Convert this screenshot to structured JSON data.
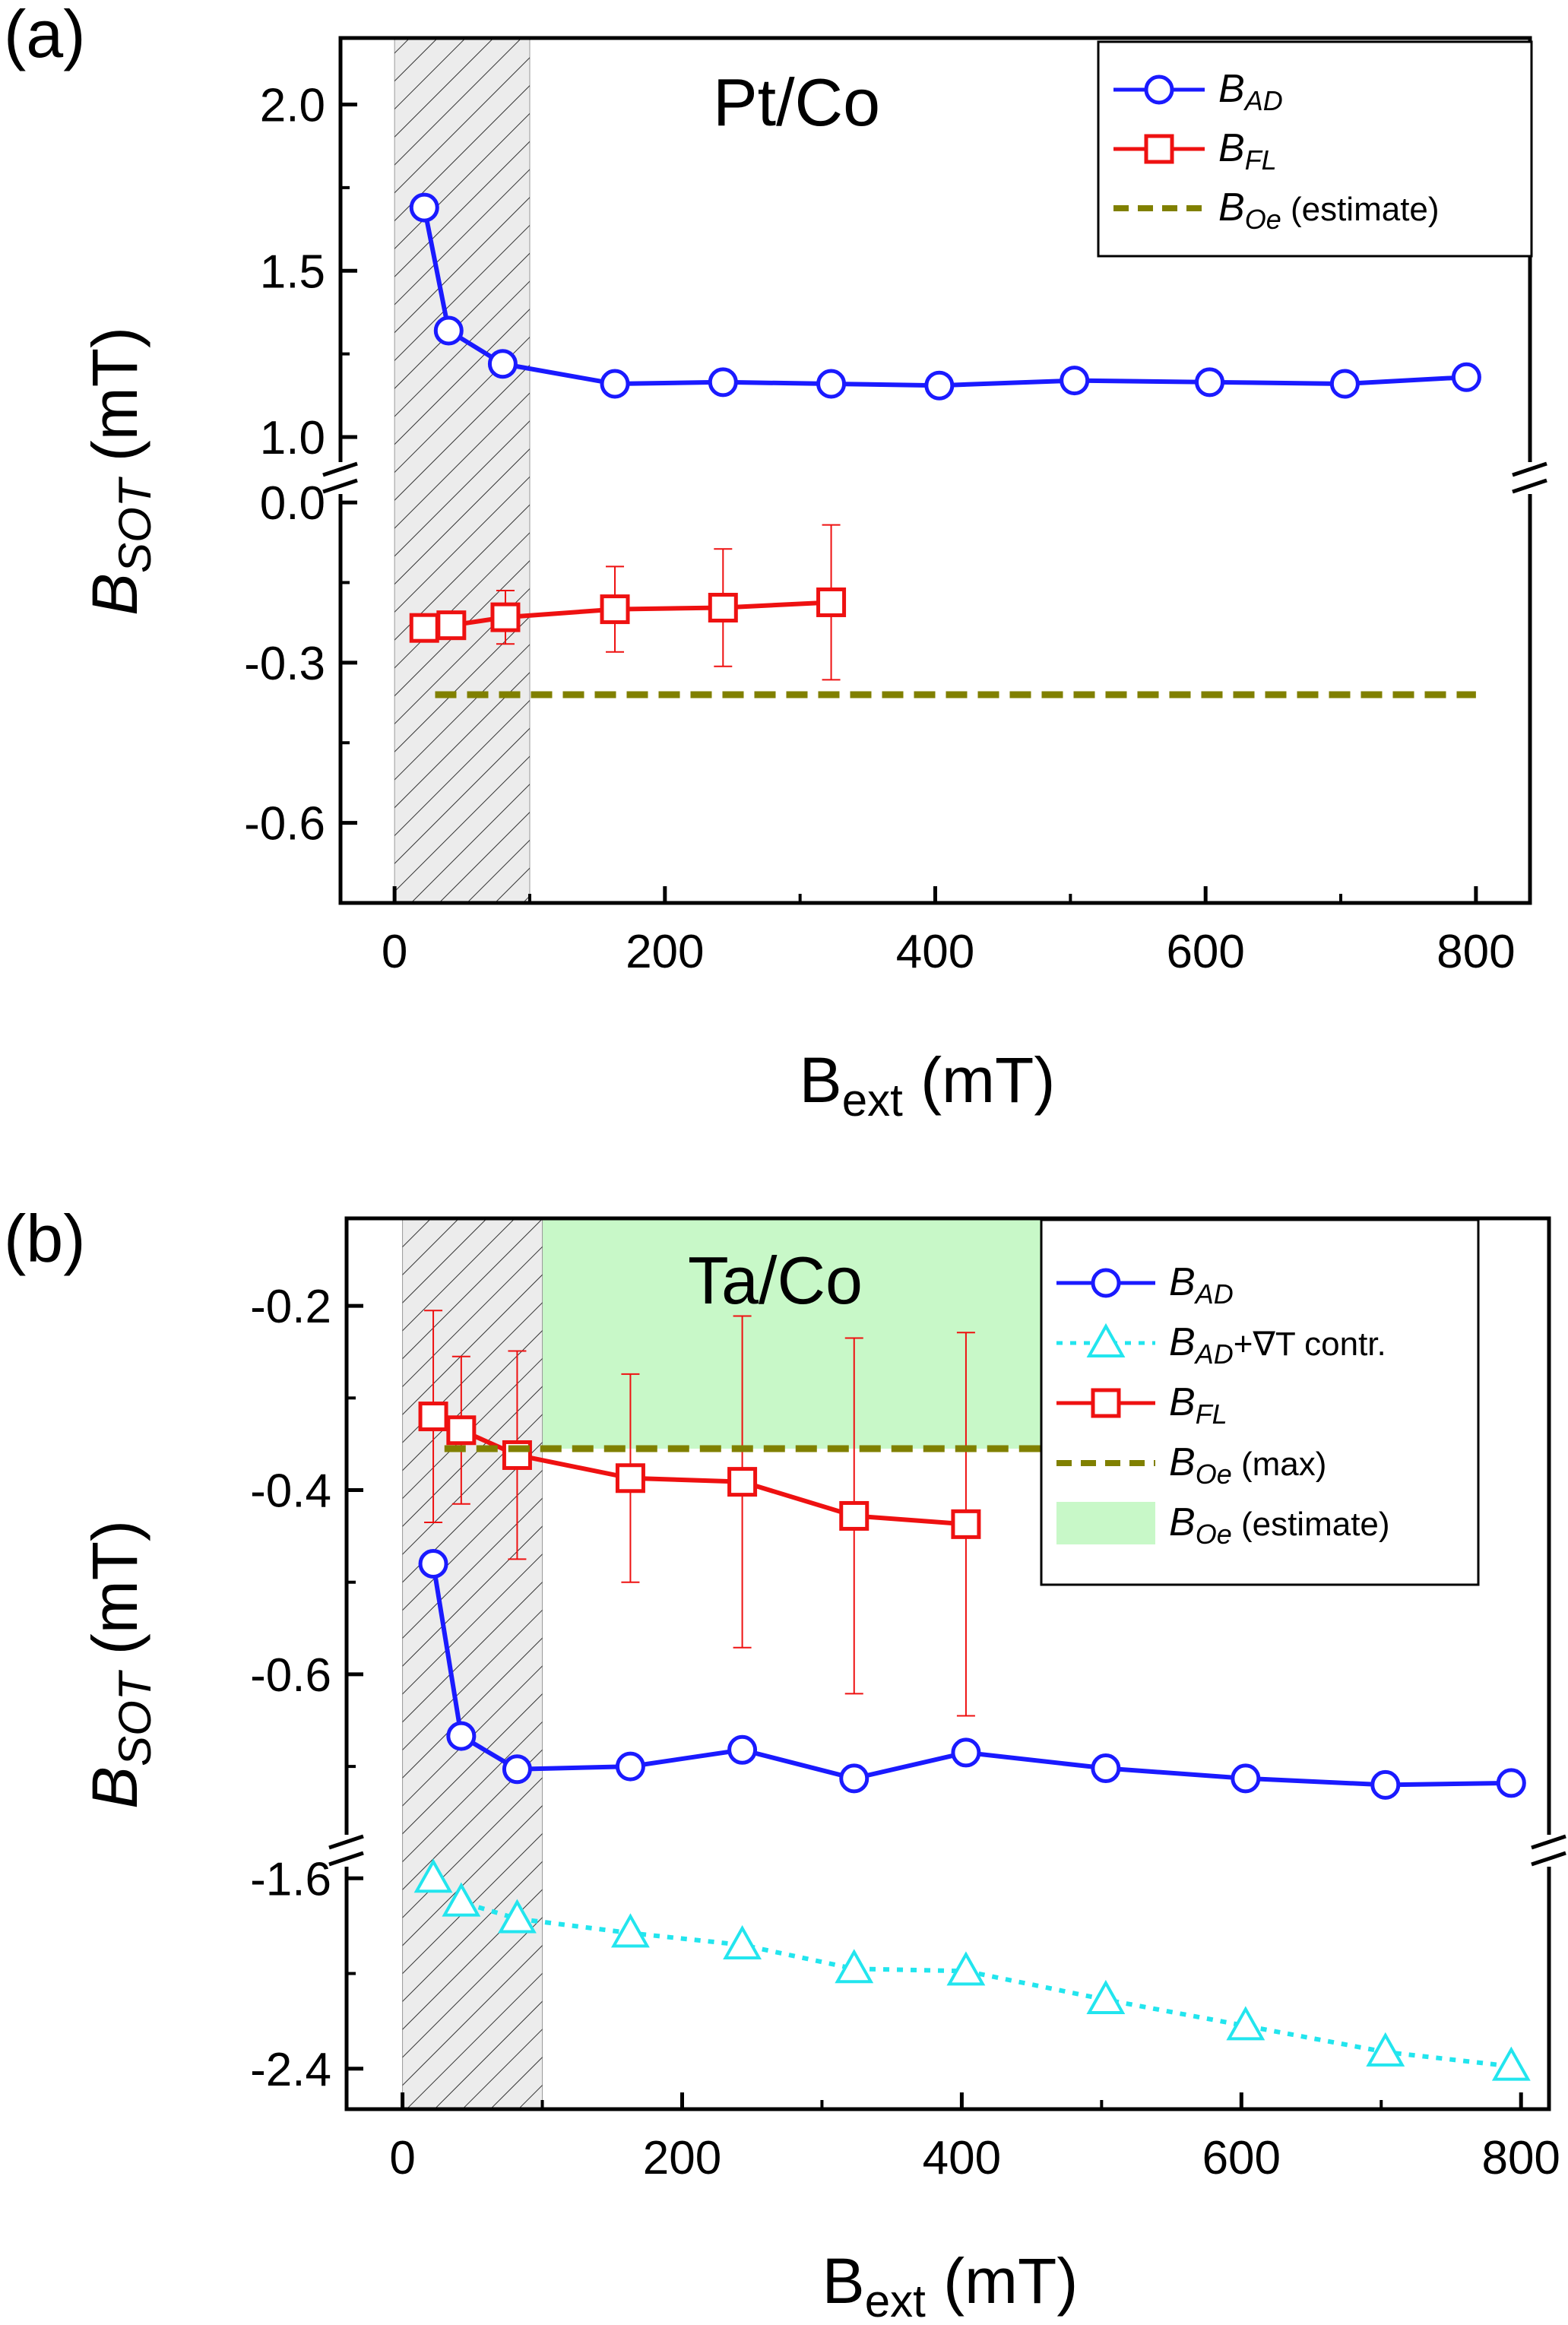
{
  "chart_data": [
    {
      "type": "line",
      "panel_label": "(a)",
      "title": "Pt/Co",
      "xlabel": {
        "main": "B",
        "sub": "ext",
        "unit": " (mT)"
      },
      "ylabel": {
        "main": "B",
        "sub": "SOT",
        "unit": " (mT)"
      },
      "xlim": [
        -40,
        840
      ],
      "xticks": [
        0,
        200,
        400,
        600,
        800
      ],
      "xtick_labels": [
        "0",
        "200",
        "400",
        "600",
        "800"
      ],
      "shaded_region": {
        "x": [
          0,
          100
        ],
        "style": "hatched"
      },
      "upper_axis": {
        "ylim": [
          0.92,
          2.2
        ],
        "yticks": [
          1.0,
          1.5,
          2.0
        ],
        "ytick_labels": [
          "1.0",
          "1.5",
          "2.0"
        ]
      },
      "lower_axis": {
        "ylim": [
          -0.75,
          0.03
        ],
        "yticks": [
          0.0,
          -0.3,
          -0.6
        ],
        "ytick_labels": [
          "0.0",
          "-0.3",
          "-0.6"
        ]
      },
      "series": [
        {
          "name": "B_AD",
          "legend_main": "B",
          "legend_sub": "AD",
          "legend_suffix": "",
          "axis": "upper",
          "color": "#1a1aff",
          "marker": "circle",
          "linestyle": "solid",
          "x": [
            22,
            40,
            80,
            163,
            243,
            323,
            403,
            503,
            603,
            703,
            793
          ],
          "y": [
            1.69,
            1.32,
            1.22,
            1.16,
            1.165,
            1.16,
            1.155,
            1.17,
            1.165,
            1.16,
            1.18
          ]
        },
        {
          "name": "B_FL",
          "legend_main": "B",
          "legend_sub": "FL",
          "legend_suffix": "",
          "axis": "lower",
          "color": "#ee1111",
          "marker": "square",
          "linestyle": "solid",
          "x": [
            22,
            42,
            82,
            163,
            243,
            323
          ],
          "y": [
            -0.235,
            -0.23,
            -0.215,
            -0.2,
            -0.197,
            -0.187
          ],
          "err": [
            0,
            0,
            0.05,
            0.08,
            0.11,
            0.145
          ]
        },
        {
          "name": "B_Oe (estimate)",
          "legend_main": "B",
          "legend_sub": "Oe",
          "legend_suffix": " (estimate)",
          "axis": "lower",
          "color": "#808000",
          "marker": "none",
          "linestyle": "dashed",
          "x": [
            30,
            800
          ],
          "y": [
            -0.36,
            -0.36
          ]
        }
      ]
    },
    {
      "type": "line",
      "panel_label": "(b)",
      "title": "Ta/Co",
      "xlabel": {
        "main": "B",
        "sub": "ext",
        "unit": " (mT)"
      },
      "ylabel": {
        "main": "B",
        "sub": "SOT",
        "unit": " (mT)"
      },
      "xlim": [
        -40,
        820
      ],
      "xticks": [
        0,
        200,
        400,
        600,
        800
      ],
      "xtick_labels": [
        "0",
        "200",
        "400",
        "600",
        "800"
      ],
      "shaded_region": {
        "x": [
          0,
          100
        ],
        "style": "hatched"
      },
      "upper_axis": {
        "ylim": [
          -0.775,
          -0.105
        ],
        "yticks": [
          -0.2,
          -0.4,
          -0.6
        ],
        "ytick_labels": [
          "-0.2",
          "-0.4",
          "-0.6"
        ]
      },
      "lower_axis": {
        "ylim": [
          -2.57,
          -1.5
        ],
        "yticks": [
          -1.6,
          -2.4
        ],
        "ytick_labels": [
          "-1.6",
          "-2.4"
        ]
      },
      "estimate_band": {
        "x": [
          0,
          465
        ],
        "y": [
          -0.355,
          -0.105
        ],
        "color": "#c8f8c8"
      },
      "series": [
        {
          "name": "B_AD",
          "legend_main": "B",
          "legend_sub": "AD",
          "legend_suffix": "",
          "axis": "upper",
          "color": "#1a1aff",
          "marker": "circle",
          "linestyle": "solid",
          "x": [
            22,
            42,
            82,
            163,
            243,
            323,
            403,
            503,
            603,
            703,
            793
          ],
          "y": [
            -0.48,
            -0.667,
            -0.703,
            -0.7,
            -0.682,
            -0.713,
            -0.685,
            -0.702,
            -0.713,
            -0.72,
            -0.718
          ]
        },
        {
          "name": "B_AD + ∇T contr.",
          "legend_main": "B",
          "legend_sub": "AD",
          "legend_suffix": "+∇T contr.",
          "axis": "lower",
          "color": "#22e5ee",
          "marker": "triangle",
          "linestyle": "dotted",
          "x": [
            22,
            42,
            82,
            163,
            243,
            323,
            403,
            503,
            603,
            703,
            793
          ],
          "y": [
            -1.6,
            -1.7,
            -1.77,
            -1.83,
            -1.88,
            -1.98,
            -1.99,
            -2.11,
            -2.22,
            -2.33,
            -2.39
          ]
        },
        {
          "name": "B_FL",
          "legend_main": "B",
          "legend_sub": "FL",
          "legend_suffix": "",
          "axis": "upper",
          "color": "#ee1111",
          "marker": "square",
          "linestyle": "solid",
          "x": [
            22,
            42,
            82,
            163,
            243,
            323,
            403
          ],
          "y": [
            -0.32,
            -0.335,
            -0.362,
            -0.387,
            -0.391,
            -0.428,
            -0.437
          ],
          "err": [
            0.115,
            0.08,
            0.113,
            0.113,
            0.18,
            0.193,
            0.208
          ]
        },
        {
          "name": "B_Oe (max)",
          "legend_main": "B",
          "legend_sub": "Oe",
          "legend_suffix": " (max)",
          "axis": "upper",
          "color": "#808000",
          "marker": "none",
          "linestyle": "dashed",
          "x": [
            30,
            465
          ],
          "y": [
            -0.355,
            -0.355
          ]
        },
        {
          "name": "B_Oe (estimate)",
          "legend_main": "B",
          "legend_sub": "Oe",
          "legend_suffix": " (estimate)",
          "axis": "upper",
          "color": "#c8f8c8",
          "marker": "patch",
          "linestyle": "none",
          "x": [],
          "y": []
        }
      ]
    }
  ]
}
